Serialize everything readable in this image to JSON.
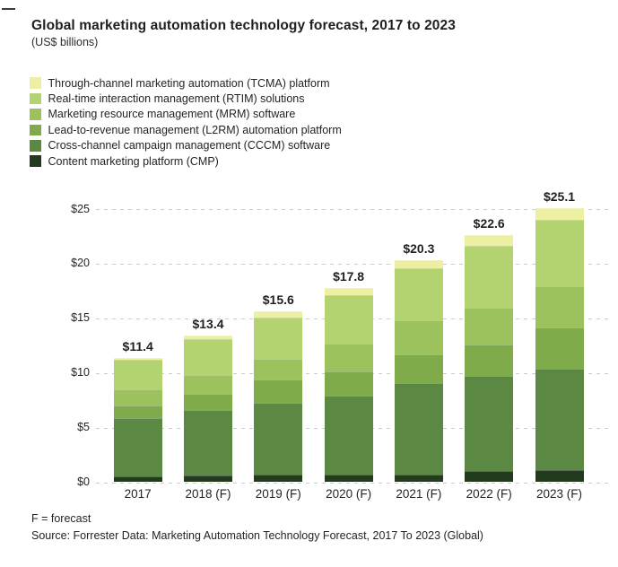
{
  "header": {
    "title": "Global marketing automation technology forecast, 2017 to 2023",
    "subtitle": "(US$ billions)"
  },
  "chart_data": {
    "type": "bar",
    "stacked": true,
    "title": "Global marketing automation technology forecast, 2017 to 2023",
    "units": "US$ billions",
    "categories": [
      "2017",
      "2018 (F)",
      "2019 (F)",
      "2020 (F)",
      "2021 (F)",
      "2022 (F)",
      "2023 (F)"
    ],
    "totals": [
      11.4,
      13.4,
      15.6,
      17.8,
      20.3,
      22.6,
      25.1
    ],
    "total_labels": [
      "$11.4",
      "$13.4",
      "$15.6",
      "$17.8",
      "$20.3",
      "$22.6",
      "$25.1"
    ],
    "series": [
      {
        "name": "Through-channel marketing automation (TCMA) platform",
        "color": "#edf0a3",
        "values": [
          0.2,
          0.3,
          0.5,
          0.7,
          0.7,
          1.0,
          1.1
        ]
      },
      {
        "name": "Real-time interaction management (RTIM) solutions",
        "color": "#b3d371",
        "values": [
          2.7,
          3.3,
          3.8,
          4.4,
          4.8,
          5.6,
          6.1
        ]
      },
      {
        "name": "Marketing resource management (MRM) software",
        "color": "#9cc25e",
        "values": [
          1.5,
          1.7,
          1.9,
          2.6,
          3.1,
          3.4,
          3.7
        ]
      },
      {
        "name": "Lead-to-revenue management (L2RM) automation platform",
        "color": "#80ab4b",
        "values": [
          1.1,
          1.5,
          2.1,
          2.2,
          2.6,
          2.9,
          3.8
        ]
      },
      {
        "name": "Cross-channel campaign management (CCCM) software",
        "color": "#5b8944",
        "values": [
          5.4,
          6.0,
          6.6,
          7.2,
          8.4,
          8.7,
          9.3
        ]
      },
      {
        "name": "Content marketing platform (CMP)",
        "color": "#233a1f",
        "values": [
          0.5,
          0.6,
          0.7,
          0.7,
          0.7,
          1.0,
          1.1
        ]
      }
    ],
    "y_tick_labels": [
      "$0",
      "$5",
      "$10",
      "$15",
      "$20",
      "$25"
    ],
    "y_tick_values": [
      0,
      5,
      10,
      15,
      20,
      25
    ],
    "ylim": [
      0,
      25
    ],
    "grid": "horizontal-dashed",
    "legend_position": "top-left"
  },
  "footer": {
    "note": "F = forecast",
    "source": "Source: Forrester Data: Marketing Automation Technology Forecast, 2017 To 2023 (Global)"
  }
}
